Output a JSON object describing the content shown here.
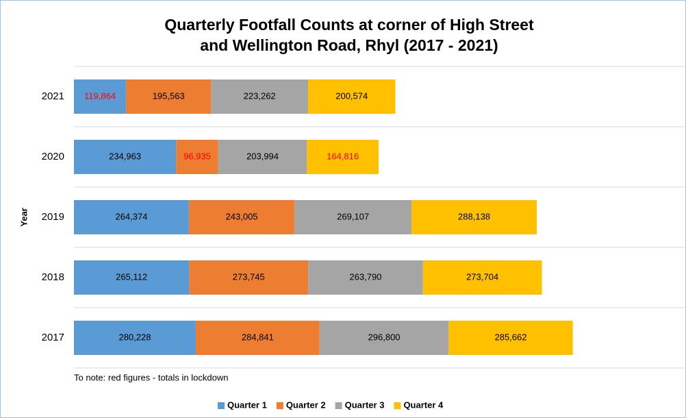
{
  "chart_data": {
    "type": "stacked-bar-horizontal",
    "title": [
      "Quarterly Footfall Counts at corner of High Street",
      "and Wellington Road, Rhyl (2017 - 2021)"
    ],
    "y_label": "Year",
    "note": "To note: red figures - totals in lockdown",
    "categories": [
      "2021",
      "2020",
      "2019",
      "2018",
      "2017"
    ],
    "xlim": [
      0,
      1400000
    ],
    "grid": true,
    "legend": "bottom",
    "series": [
      {
        "name": "Quarter 1",
        "color": "#5b9bd5",
        "values": [
          119864,
          234963,
          264374,
          265112,
          280228
        ],
        "value_labels": [
          "119,864",
          "234,963",
          "264,374",
          "265,112",
          "280,228"
        ],
        "label_colors": [
          "#ff0000",
          "#000000",
          "#000000",
          "#000000",
          "#000000"
        ]
      },
      {
        "name": "Quarter 2",
        "color": "#ed7d31",
        "values": [
          195563,
          96935,
          243005,
          273745,
          284841
        ],
        "value_labels": [
          "195,563",
          "96,935",
          "243,005",
          "273,745",
          "284,841"
        ],
        "label_colors": [
          "#000000",
          "#ff0000",
          "#000000",
          "#000000",
          "#000000"
        ]
      },
      {
        "name": "Quarter 3",
        "color": "#a5a5a5",
        "values": [
          223262,
          203994,
          269107,
          263790,
          296800
        ],
        "value_labels": [
          "223,262",
          "203,994",
          "269,107",
          "263,790",
          "296,800"
        ],
        "label_colors": [
          "#000000",
          "#000000",
          "#000000",
          "#000000",
          "#000000"
        ]
      },
      {
        "name": "Quarter 4",
        "color": "#ffc000",
        "values": [
          200574,
          164816,
          288138,
          273704,
          285662
        ],
        "value_labels": [
          "200,574",
          "164,816",
          "288,138",
          "273,704",
          "285,662"
        ],
        "label_colors": [
          "#000000",
          "#ff0000",
          "#000000",
          "#000000",
          "#000000"
        ]
      }
    ]
  }
}
